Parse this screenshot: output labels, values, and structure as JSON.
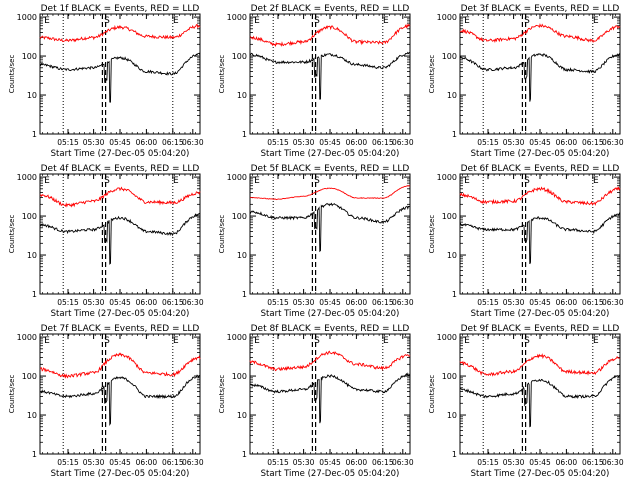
{
  "figure": {
    "background": "#ffffff",
    "axis_color": "#000000",
    "events_color": "#000000",
    "lld_color": "#ff0000",
    "ylabel": "Counts/sec",
    "xlabel": "Start Time (27-Dec-05 05:04:20)",
    "y_ticks": [
      "1",
      "10",
      "100",
      "1000"
    ],
    "x_ticks_a": [
      "05:15",
      "05:30",
      "05:45",
      "06:00",
      "06:15",
      "06:30"
    ],
    "x_ticks_b": [
      "05:15",
      "05:30",
      "05:45",
      "06:00",
      "06:15",
      "06:30"
    ],
    "x_ticks_c": [
      "05:15",
      "05:30",
      "05:45",
      "06:00",
      "06:15",
      "06:30"
    ]
  },
  "chart_data": [
    {
      "type": "line",
      "title": "Det 1f BLACK = Events, RED = LLD",
      "xlabel": "Start Time (27-Dec-05 05:04:20)",
      "ylabel": "Counts/sec",
      "yscale": "log",
      "ylim": [
        1,
        1200
      ],
      "markers": [
        "E",
        "S",
        "E"
      ],
      "red_profile": [
        300,
        250,
        300,
        550,
        320,
        300,
        600
      ],
      "black_profile": [
        60,
        45,
        50,
        90,
        40,
        35,
        110
      ]
    },
    {
      "type": "line",
      "title": "Det 2f BLACK = Events, RED = LLD",
      "xlabel": "Start Time (27-Dec-05 05:04:20)",
      "ylabel": "Counts/sec",
      "yscale": "log",
      "ylim": [
        1,
        1200
      ],
      "markers": [
        "E",
        "S",
        "E"
      ],
      "red_profile": [
        300,
        200,
        230,
        550,
        230,
        220,
        600
      ],
      "black_profile": [
        110,
        70,
        70,
        110,
        60,
        50,
        120
      ]
    },
    {
      "type": "line",
      "title": "Det 3f BLACK = Events, RED = LLD",
      "xlabel": "Start Time (27-Dec-05 05:04:20)",
      "ylabel": "Counts/sec",
      "yscale": "log",
      "ylim": [
        1,
        1200
      ],
      "markers": [
        "E",
        "S",
        "E"
      ],
      "red_profile": [
        450,
        250,
        280,
        600,
        320,
        250,
        580
      ],
      "black_profile": [
        90,
        45,
        50,
        110,
        45,
        40,
        110
      ]
    },
    {
      "type": "line",
      "title": "Det 4f BLACK = Events, RED = LLD",
      "xlabel": "Start Time (27-Dec-05 05:04:20)",
      "ylabel": "Counts/sec",
      "yscale": "log",
      "ylim": [
        1,
        1200
      ],
      "markers": [
        "E",
        "S",
        "E"
      ],
      "red_profile": [
        350,
        190,
        240,
        500,
        230,
        220,
        400
      ],
      "black_profile": [
        60,
        40,
        45,
        90,
        40,
        35,
        110
      ]
    },
    {
      "type": "line",
      "title": "Det 5f BLACK = Events, RED = LLD",
      "xlabel": "Start Time (27-Dec-05 05:04:20)",
      "ylabel": "Counts/sec",
      "yscale": "log",
      "ylim": [
        1,
        1200
      ],
      "markers": [
        "E",
        "S",
        "E"
      ],
      "red_profile": [
        300,
        270,
        320,
        520,
        290,
        290,
        600
      ],
      "black_profile": [
        130,
        90,
        90,
        200,
        90,
        70,
        170
      ]
    },
    {
      "type": "line",
      "title": "Det 6f BLACK = Events, RED = LLD",
      "xlabel": "Start Time (27-Dec-05 05:04:20)",
      "ylabel": "Counts/sec",
      "yscale": "log",
      "ylim": [
        1,
        1200
      ],
      "markers": [
        "E",
        "S",
        "E"
      ],
      "red_profile": [
        350,
        230,
        240,
        500,
        230,
        210,
        500
      ],
      "black_profile": [
        60,
        45,
        45,
        90,
        45,
        40,
        110
      ]
    },
    {
      "type": "line",
      "title": "Det 7f BLACK = Events, RED = LLD",
      "xlabel": "Start Time (27-Dec-05 05:04:20)",
      "ylabel": "Counts/sec",
      "yscale": "log",
      "ylim": [
        1,
        1200
      ],
      "markers": [
        "E",
        "S",
        "E"
      ],
      "red_profile": [
        150,
        100,
        120,
        350,
        120,
        110,
        300
      ],
      "black_profile": [
        40,
        30,
        35,
        90,
        30,
        30,
        100
      ]
    },
    {
      "type": "line",
      "title": "Det 8f BLACK = Events, RED = LLD",
      "xlabel": "Start Time (27-Dec-05 05:04:20)",
      "ylabel": "Counts/sec",
      "yscale": "log",
      "ylim": [
        1,
        1200
      ],
      "markers": [
        "E",
        "S",
        "E"
      ],
      "red_profile": [
        230,
        150,
        170,
        400,
        200,
        160,
        350
      ],
      "black_profile": [
        60,
        40,
        45,
        100,
        45,
        40,
        110
      ]
    },
    {
      "type": "line",
      "title": "Det 9f BLACK = Events, RED = LLD",
      "xlabel": "Start Time (27-Dec-05 05:04:20)",
      "ylabel": "Counts/sec",
      "yscale": "log",
      "ylim": [
        1,
        1200
      ],
      "markers": [
        "E",
        "S",
        "E"
      ],
      "red_profile": [
        220,
        110,
        130,
        330,
        130,
        120,
        300
      ],
      "black_profile": [
        45,
        30,
        35,
        80,
        30,
        30,
        100
      ]
    }
  ]
}
